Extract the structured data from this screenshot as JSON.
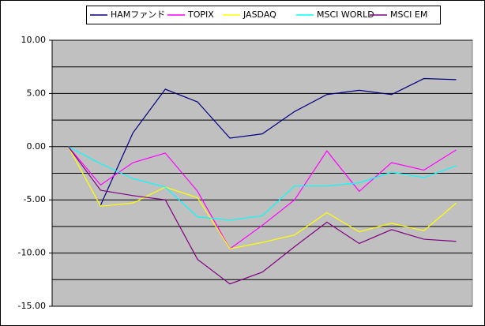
{
  "chart_data": {
    "type": "line",
    "categories": [
      null,
      null,
      null,
      null,
      null,
      null,
      null,
      null,
      null,
      null,
      null,
      null,
      null
    ],
    "series": [
      {
        "name": "HAMファンド",
        "color": "#000080",
        "values": [
          null,
          -5.5,
          1.3,
          5.4,
          4.2,
          0.8,
          1.2,
          3.3,
          4.9,
          5.3,
          4.9,
          6.4,
          6.3
        ]
      },
      {
        "name": "TOPIX",
        "color": "#ff00ff",
        "values": [
          0,
          -3.6,
          -1.5,
          -0.6,
          -4.2,
          -9.6,
          -7.4,
          -5.0,
          -0.4,
          -4.2,
          -1.5,
          -2.2,
          -0.3
        ]
      },
      {
        "name": "JASDAQ",
        "color": "#ffff00",
        "values": [
          0,
          -5.6,
          -5.3,
          -3.8,
          -4.8,
          -9.6,
          -9.0,
          -8.3,
          -6.2,
          -8.0,
          -7.2,
          -7.9,
          -5.3
        ]
      },
      {
        "name": "MSCI WORLD",
        "color": "#00ffff",
        "values": [
          0,
          -1.6,
          -3.0,
          -3.8,
          -6.6,
          -6.9,
          -6.5,
          -3.7,
          -3.7,
          -3.4,
          -2.4,
          -2.9,
          -1.8
        ]
      },
      {
        "name": "MSCI EM",
        "color": "#800080",
        "values": [
          0,
          -4.1,
          -4.6,
          -5.0,
          -10.6,
          -12.9,
          -11.8,
          -9.4,
          -7.1,
          -9.1,
          -7.8,
          -8.7,
          -8.9
        ]
      }
    ],
    "ylim": [
      -15,
      10
    ],
    "yticks": [
      {
        "value": 10,
        "label": "10.00"
      },
      {
        "value": 5,
        "label": "5.00"
      },
      {
        "value": 0,
        "label": "0.00"
      },
      {
        "value": -5,
        "label": "-5.00"
      },
      {
        "value": -10,
        "label": "-10.00"
      },
      {
        "value": -15,
        "label": "-15.00"
      }
    ],
    "ygrid": [
      10,
      7.5,
      5,
      2.5,
      0,
      -2.5,
      -5,
      -7.5,
      -10,
      -12.5,
      -15
    ],
    "plot_background": "#c0c0c0",
    "legend": "top"
  }
}
